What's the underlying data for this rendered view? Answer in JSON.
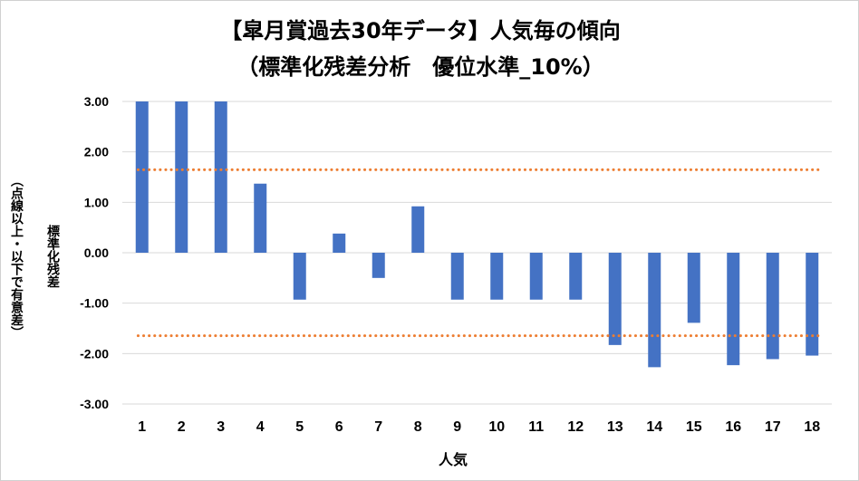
{
  "chart_data": {
    "type": "bar",
    "title": "【皐月賞過去30年データ】人気毎の傾向",
    "subtitle": "（標準化残差分析　優位水準_10%）",
    "xlabel": "人気",
    "ylabel_lines": [
      "標準化残差",
      "（点線以上・以下で有意差）"
    ],
    "categories": [
      "1",
      "2",
      "3",
      "4",
      "5",
      "6",
      "7",
      "8",
      "9",
      "10",
      "11",
      "12",
      "13",
      "14",
      "15",
      "16",
      "17",
      "18"
    ],
    "series": [
      {
        "values": [
          3.0,
          3.0,
          3.0,
          1.37,
          -0.93,
          0.38,
          -0.5,
          0.92,
          -0.93,
          -0.93,
          -0.93,
          -0.93,
          -1.83,
          -2.27,
          -1.39,
          -2.23,
          -2.11,
          -2.04
        ]
      }
    ],
    "yticks": [
      "3.00",
      "2.00",
      "1.00",
      "0.00",
      "-1.00",
      "-2.00",
      "-3.00"
    ],
    "ylim": [
      -3,
      3
    ],
    "reference_lines": [
      1.645,
      -1.645
    ],
    "colors": {
      "bar": "#4472c4",
      "reference": "#ed7d31",
      "grid": "#d9d9d9"
    },
    "grid": true
  }
}
